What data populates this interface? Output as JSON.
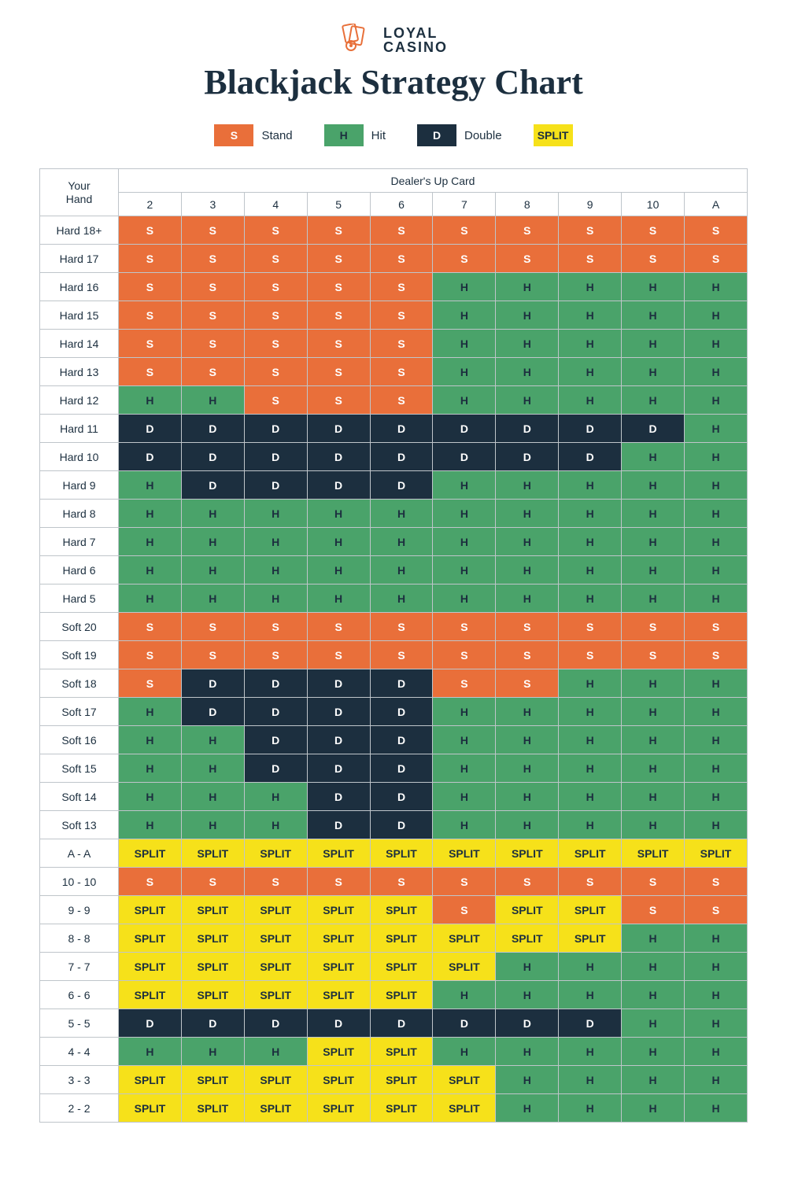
{
  "brand": {
    "line1": "LOYAL",
    "line2": "CASINO",
    "brand_color": "#e8703a"
  },
  "title": "Blackjack Strategy Chart",
  "legend": [
    {
      "code": "S",
      "label": "Stand"
    },
    {
      "code": "H",
      "label": "Hit"
    },
    {
      "code": "D",
      "label": "Double"
    },
    {
      "code": "SPLIT",
      "label": ""
    }
  ],
  "action_styles": {
    "S": {
      "bg": "#e96f3a",
      "fg": "#ffffff"
    },
    "H": {
      "bg": "#4aa36a",
      "fg": "#1c2f3f"
    },
    "D": {
      "bg": "#1c2f3f",
      "fg": "#ffffff"
    },
    "SPLIT": {
      "bg": "#f6e11a",
      "fg": "#1c2f3f"
    }
  },
  "corner_label": "Your\nHand",
  "dealer_label": "Dealer's Up Card",
  "dealer_cards": [
    "2",
    "3",
    "4",
    "5",
    "6",
    "7",
    "8",
    "9",
    "10",
    "A"
  ],
  "rows": [
    {
      "hand": "Hard 18+",
      "cells": [
        "S",
        "S",
        "S",
        "S",
        "S",
        "S",
        "S",
        "S",
        "S",
        "S"
      ]
    },
    {
      "hand": "Hard 17",
      "cells": [
        "S",
        "S",
        "S",
        "S",
        "S",
        "S",
        "S",
        "S",
        "S",
        "S"
      ]
    },
    {
      "hand": "Hard 16",
      "cells": [
        "S",
        "S",
        "S",
        "S",
        "S",
        "H",
        "H",
        "H",
        "H",
        "H"
      ]
    },
    {
      "hand": "Hard 15",
      "cells": [
        "S",
        "S",
        "S",
        "S",
        "S",
        "H",
        "H",
        "H",
        "H",
        "H"
      ]
    },
    {
      "hand": "Hard 14",
      "cells": [
        "S",
        "S",
        "S",
        "S",
        "S",
        "H",
        "H",
        "H",
        "H",
        "H"
      ]
    },
    {
      "hand": "Hard 13",
      "cells": [
        "S",
        "S",
        "S",
        "S",
        "S",
        "H",
        "H",
        "H",
        "H",
        "H"
      ]
    },
    {
      "hand": "Hard 12",
      "cells": [
        "H",
        "H",
        "S",
        "S",
        "S",
        "H",
        "H",
        "H",
        "H",
        "H"
      ]
    },
    {
      "hand": "Hard 11",
      "cells": [
        "D",
        "D",
        "D",
        "D",
        "D",
        "D",
        "D",
        "D",
        "D",
        "H"
      ]
    },
    {
      "hand": "Hard 10",
      "cells": [
        "D",
        "D",
        "D",
        "D",
        "D",
        "D",
        "D",
        "D",
        "H",
        "H"
      ]
    },
    {
      "hand": "Hard 9",
      "cells": [
        "H",
        "D",
        "D",
        "D",
        "D",
        "H",
        "H",
        "H",
        "H",
        "H"
      ]
    },
    {
      "hand": "Hard 8",
      "cells": [
        "H",
        "H",
        "H",
        "H",
        "H",
        "H",
        "H",
        "H",
        "H",
        "H"
      ]
    },
    {
      "hand": "Hard 7",
      "cells": [
        "H",
        "H",
        "H",
        "H",
        "H",
        "H",
        "H",
        "H",
        "H",
        "H"
      ]
    },
    {
      "hand": "Hard 6",
      "cells": [
        "H",
        "H",
        "H",
        "H",
        "H",
        "H",
        "H",
        "H",
        "H",
        "H"
      ]
    },
    {
      "hand": "Hard 5",
      "cells": [
        "H",
        "H",
        "H",
        "H",
        "H",
        "H",
        "H",
        "H",
        "H",
        "H"
      ]
    },
    {
      "hand": "Soft 20",
      "cells": [
        "S",
        "S",
        "S",
        "S",
        "S",
        "S",
        "S",
        "S",
        "S",
        "S"
      ]
    },
    {
      "hand": "Soft 19",
      "cells": [
        "S",
        "S",
        "S",
        "S",
        "S",
        "S",
        "S",
        "S",
        "S",
        "S"
      ]
    },
    {
      "hand": "Soft 18",
      "cells": [
        "S",
        "D",
        "D",
        "D",
        "D",
        "S",
        "S",
        "H",
        "H",
        "H"
      ]
    },
    {
      "hand": "Soft 17",
      "cells": [
        "H",
        "D",
        "D",
        "D",
        "D",
        "H",
        "H",
        "H",
        "H",
        "H"
      ]
    },
    {
      "hand": "Soft 16",
      "cells": [
        "H",
        "H",
        "D",
        "D",
        "D",
        "H",
        "H",
        "H",
        "H",
        "H"
      ]
    },
    {
      "hand": "Soft 15",
      "cells": [
        "H",
        "H",
        "D",
        "D",
        "D",
        "H",
        "H",
        "H",
        "H",
        "H"
      ]
    },
    {
      "hand": "Soft 14",
      "cells": [
        "H",
        "H",
        "H",
        "D",
        "D",
        "H",
        "H",
        "H",
        "H",
        "H"
      ]
    },
    {
      "hand": "Soft 13",
      "cells": [
        "H",
        "H",
        "H",
        "D",
        "D",
        "H",
        "H",
        "H",
        "H",
        "H"
      ]
    },
    {
      "hand": "A - A",
      "cells": [
        "SPLIT",
        "SPLIT",
        "SPLIT",
        "SPLIT",
        "SPLIT",
        "SPLIT",
        "SPLIT",
        "SPLIT",
        "SPLIT",
        "SPLIT"
      ]
    },
    {
      "hand": "10 - 10",
      "cells": [
        "S",
        "S",
        "S",
        "S",
        "S",
        "S",
        "S",
        "S",
        "S",
        "S"
      ]
    },
    {
      "hand": "9 - 9",
      "cells": [
        "SPLIT",
        "SPLIT",
        "SPLIT",
        "SPLIT",
        "SPLIT",
        "S",
        "SPLIT",
        "SPLIT",
        "S",
        "S"
      ]
    },
    {
      "hand": "8 - 8",
      "cells": [
        "SPLIT",
        "SPLIT",
        "SPLIT",
        "SPLIT",
        "SPLIT",
        "SPLIT",
        "SPLIT",
        "SPLIT",
        "H",
        "H"
      ]
    },
    {
      "hand": "7 - 7",
      "cells": [
        "SPLIT",
        "SPLIT",
        "SPLIT",
        "SPLIT",
        "SPLIT",
        "SPLIT",
        "H",
        "H",
        "H",
        "H"
      ]
    },
    {
      "hand": "6 - 6",
      "cells": [
        "SPLIT",
        "SPLIT",
        "SPLIT",
        "SPLIT",
        "SPLIT",
        "H",
        "H",
        "H",
        "H",
        "H"
      ]
    },
    {
      "hand": "5 - 5",
      "cells": [
        "D",
        "D",
        "D",
        "D",
        "D",
        "D",
        "D",
        "D",
        "H",
        "H"
      ]
    },
    {
      "hand": "4 - 4",
      "cells": [
        "H",
        "H",
        "H",
        "SPLIT",
        "SPLIT",
        "H",
        "H",
        "H",
        "H",
        "H"
      ]
    },
    {
      "hand": "3 - 3",
      "cells": [
        "SPLIT",
        "SPLIT",
        "SPLIT",
        "SPLIT",
        "SPLIT",
        "SPLIT",
        "H",
        "H",
        "H",
        "H"
      ]
    },
    {
      "hand": "2 - 2",
      "cells": [
        "SPLIT",
        "SPLIT",
        "SPLIT",
        "SPLIT",
        "SPLIT",
        "SPLIT",
        "H",
        "H",
        "H",
        "H"
      ]
    }
  ],
  "table_style": {
    "border_color": "#bfc5ca",
    "header_bg": "#ffffff",
    "text_color": "#1c2f3f",
    "cell_font_weight": 700
  }
}
